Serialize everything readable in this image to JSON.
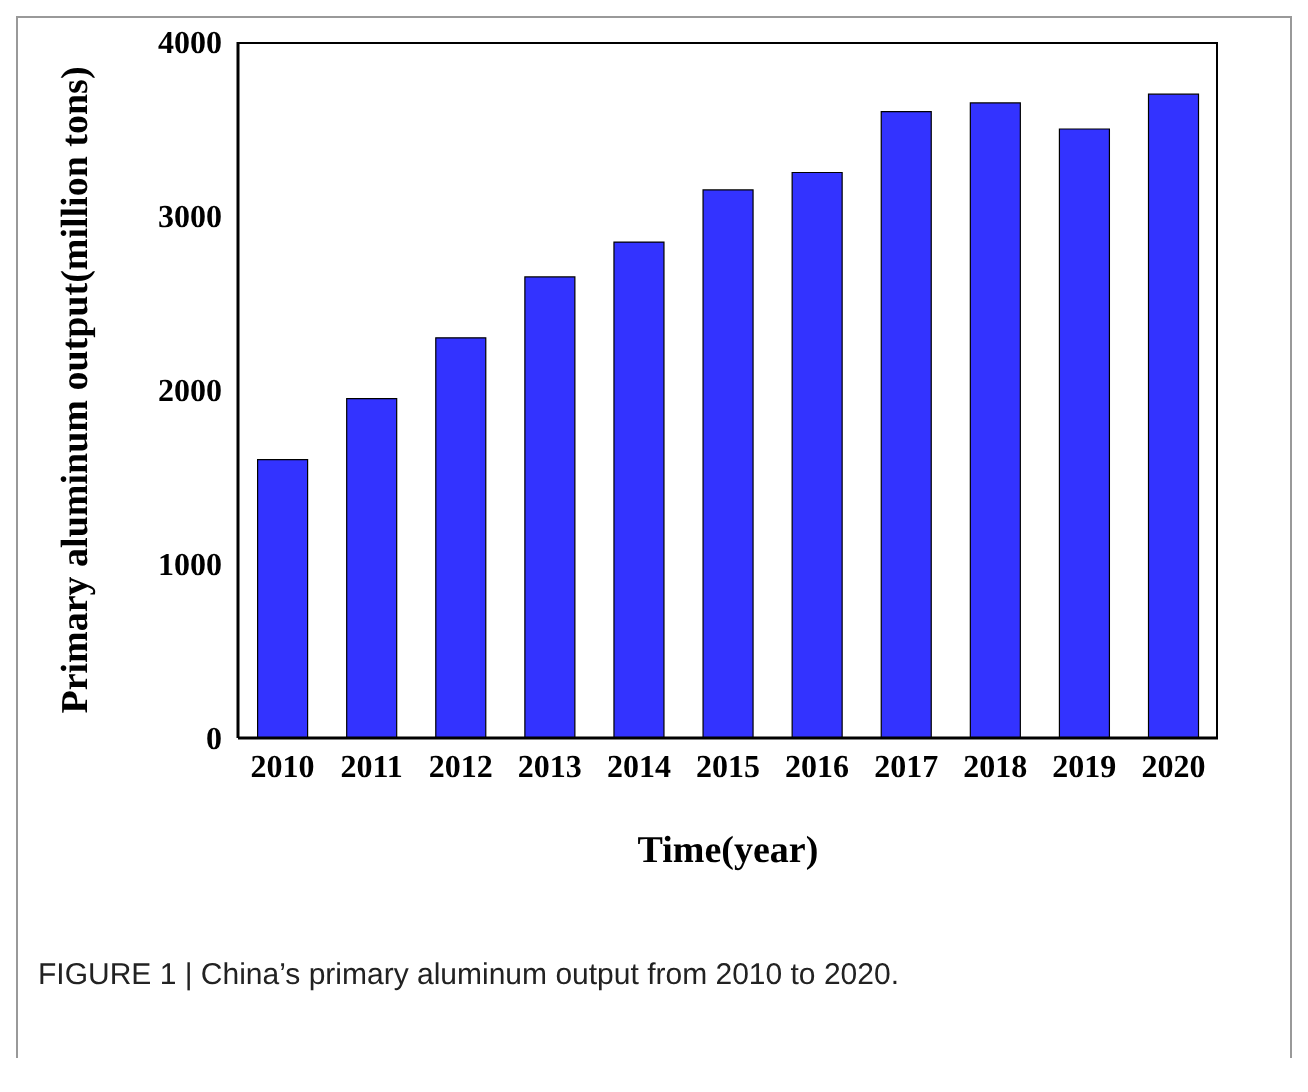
{
  "chart_data": {
    "type": "bar",
    "xlabel": "Time(year)",
    "ylabel": "Primary aluminum output(million tons)",
    "categories": [
      "2010",
      "2011",
      "2012",
      "2013",
      "2014",
      "2015",
      "2016",
      "2017",
      "2018",
      "2019",
      "2020"
    ],
    "values": [
      1600,
      1950,
      2300,
      2650,
      2850,
      3150,
      3250,
      3600,
      3650,
      3500,
      3700
    ],
    "color": "#3333ff",
    "ylim": [
      0,
      4000
    ],
    "yticks": [
      0,
      1000,
      2000,
      3000,
      4000
    ],
    "grid": false,
    "annotations": [
      "FIGURE 1 | China’s primary aluminum output from 2010 to 2020."
    ]
  }
}
